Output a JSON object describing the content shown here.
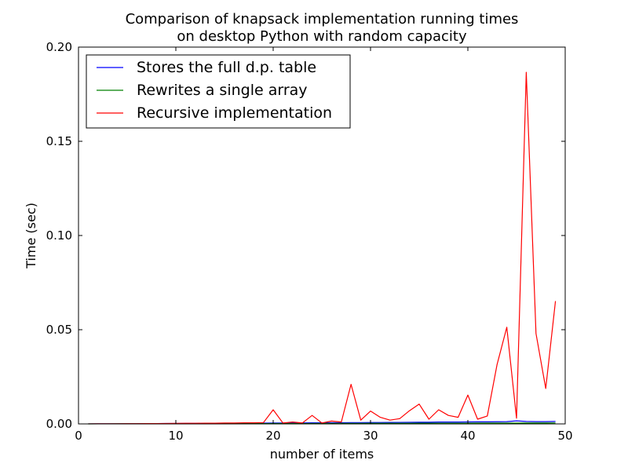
{
  "chart_data": {
    "type": "line",
    "title_line1": "Comparison of knapsack implementation running times",
    "title_line2": "on desktop Python with random capacity",
    "xlabel": "number of items",
    "ylabel": "Time (sec)",
    "xlim": [
      0,
      50
    ],
    "ylim": [
      0,
      0.2
    ],
    "xticks": [
      0,
      10,
      20,
      30,
      40,
      50
    ],
    "xtick_labels": [
      "0",
      "10",
      "20",
      "30",
      "40",
      "50"
    ],
    "yticks": [
      0,
      0.05,
      0.1,
      0.15,
      0.2
    ],
    "ytick_labels": [
      "0.00",
      "0.05",
      "0.10",
      "0.15",
      "0.20"
    ],
    "grid": false,
    "legend_position": "top-left",
    "series": [
      {
        "name": "Stores the full d.p. table",
        "color": "#0000ff",
        "x": [
          1,
          2,
          3,
          4,
          5,
          6,
          7,
          8,
          9,
          10,
          11,
          12,
          13,
          14,
          15,
          16,
          17,
          18,
          19,
          20,
          21,
          22,
          23,
          24,
          25,
          26,
          27,
          28,
          29,
          30,
          31,
          32,
          33,
          34,
          35,
          36,
          37,
          38,
          39,
          40,
          41,
          42,
          43,
          44,
          45,
          46,
          47,
          48,
          49
        ],
        "y": [
          2e-05,
          4e-05,
          6e-05,
          8e-05,
          0.0001,
          0.00012,
          0.00015,
          0.00018,
          0.0002,
          0.00022,
          0.00025,
          0.00028,
          0.0003,
          0.00033,
          0.0004,
          0.00038,
          0.0004,
          0.00042,
          0.00045,
          0.0005,
          0.0005,
          0.00052,
          0.00055,
          0.0006,
          0.0006,
          0.00062,
          0.00065,
          0.0007,
          0.0007,
          0.00072,
          0.00075,
          0.00078,
          0.0008,
          0.00085,
          0.0009,
          0.0009,
          0.001,
          0.001,
          0.001,
          0.00105,
          0.0011,
          0.0011,
          0.00115,
          0.0012,
          0.0016,
          0.0013,
          0.0012,
          0.0012,
          0.0013
        ]
      },
      {
        "name": "Rewrites a single array",
        "color": "#008000",
        "x": [
          1,
          2,
          3,
          4,
          5,
          6,
          7,
          8,
          9,
          10,
          11,
          12,
          13,
          14,
          15,
          16,
          17,
          18,
          19,
          20,
          21,
          22,
          23,
          24,
          25,
          26,
          27,
          28,
          29,
          30,
          31,
          32,
          33,
          34,
          35,
          36,
          37,
          38,
          39,
          40,
          41,
          42,
          43,
          44,
          45,
          46,
          47,
          48,
          49
        ],
        "y": [
          1e-05,
          2e-05,
          3e-05,
          4e-05,
          5e-05,
          6e-05,
          7e-05,
          8e-05,
          9e-05,
          0.0001,
          0.00011,
          0.00012,
          0.00013,
          0.00014,
          0.00015,
          0.00016,
          0.00017,
          0.00018,
          0.00019,
          0.0002,
          0.00021,
          0.00022,
          0.00023,
          0.00024,
          0.00025,
          0.00026,
          0.00027,
          0.00028,
          0.00029,
          0.0003,
          0.00031,
          0.00032,
          0.00033,
          0.00034,
          0.00035,
          0.00036,
          0.00037,
          0.00038,
          0.00039,
          0.0004,
          0.00041,
          0.00042,
          0.00043,
          0.00044,
          0.00045,
          0.00046,
          0.00047,
          0.00048,
          0.00049
        ]
      },
      {
        "name": "Recursive implementation",
        "color": "#ff0000",
        "x": [
          1,
          2,
          3,
          4,
          5,
          6,
          7,
          8,
          9,
          10,
          11,
          12,
          13,
          14,
          15,
          16,
          17,
          18,
          19,
          20,
          21,
          22,
          23,
          24,
          25,
          26,
          27,
          28,
          29,
          30,
          31,
          32,
          33,
          34,
          35,
          36,
          37,
          38,
          39,
          40,
          41,
          42,
          43,
          44,
          45,
          46,
          47,
          48,
          49
        ],
        "y": [
          3e-05,
          4e-05,
          6e-05,
          8e-05,
          0.0001,
          0.00012,
          0.00015,
          0.00018,
          0.0002,
          0.00025,
          0.0003,
          0.0003,
          0.0004,
          0.0004,
          0.0005,
          0.0005,
          0.0006,
          0.0006,
          0.0007,
          0.0075,
          0.0005,
          0.001,
          0.0005,
          0.0045,
          0.0005,
          0.0015,
          0.001,
          0.021,
          0.002,
          0.0068,
          0.0035,
          0.002,
          0.0028,
          0.007,
          0.0105,
          0.0025,
          0.0075,
          0.0045,
          0.0035,
          0.0153,
          0.0025,
          0.0042,
          0.0315,
          0.0513,
          0.003,
          0.1866,
          0.048,
          0.0188,
          0.0652
        ]
      }
    ]
  }
}
